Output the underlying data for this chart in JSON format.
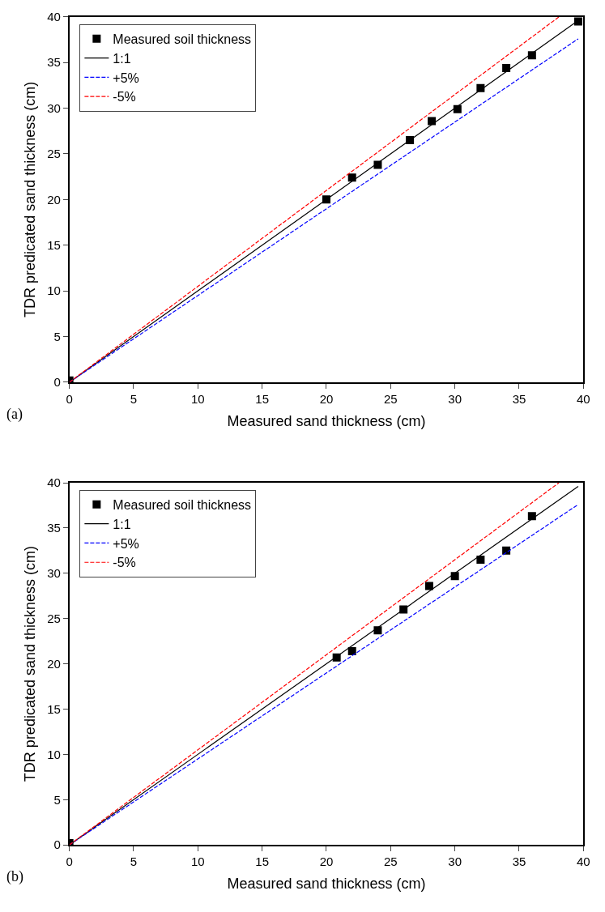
{
  "chart_data": [
    {
      "type": "scatter",
      "xlabel": "Measured sand thickness (cm)",
      "ylabel": "TDR predicated sand thickness (cm)",
      "annotations": [
        "(a)"
      ],
      "xlim": [
        0,
        40
      ],
      "ylim": [
        0,
        40
      ],
      "xticks": [
        0,
        5,
        10,
        15,
        20,
        25,
        30,
        35,
        40
      ],
      "yticks": [
        0,
        5,
        10,
        15,
        20,
        25,
        30,
        35,
        40
      ],
      "grid": false,
      "legend": "top left",
      "series": [
        {
          "name": "Measured soil thickness",
          "marker": "square",
          "color": "#000000",
          "x": [
            0,
            20,
            22,
            24,
            26.5,
            28.2,
            30.2,
            32,
            34,
            36,
            39.6
          ],
          "values": [
            0.2,
            20,
            22.4,
            23.8,
            26.5,
            28.6,
            29.9,
            32.2,
            34.4,
            35.8,
            39.5
          ]
        },
        {
          "name": "1:1",
          "type": "line",
          "line_style": "solid",
          "color": "#000000",
          "x": [
            0,
            39.6
          ],
          "values": [
            0,
            39.6
          ]
        },
        {
          "name": "+5%",
          "type": "line",
          "line_style": "dashed",
          "color": "#0000ff",
          "x": [
            0,
            39.6
          ],
          "values": [
            0,
            37.6
          ]
        },
        {
          "name": "-5%",
          "type": "line",
          "line_style": "dashed",
          "color": "#ff0000",
          "x": [
            0,
            38.1
          ],
          "values": [
            0,
            40
          ]
        }
      ]
    },
    {
      "type": "scatter",
      "xlabel": "Measured sand thickness (cm)",
      "ylabel": "TDR predicated sand thickness (cm)",
      "annotations": [
        "(b)"
      ],
      "xlim": [
        0,
        40
      ],
      "ylim": [
        0,
        40
      ],
      "xticks": [
        0,
        5,
        10,
        15,
        20,
        25,
        30,
        35,
        40
      ],
      "yticks": [
        0,
        5,
        10,
        15,
        20,
        25,
        30,
        35,
        40
      ],
      "grid": false,
      "legend": "top left",
      "series": [
        {
          "name": "Measured soil thickness",
          "marker": "square",
          "color": "#000000",
          "x": [
            0,
            20.8,
            22,
            24,
            26,
            28,
            30,
            32,
            34,
            36
          ],
          "values": [
            0.2,
            20.7,
            21.4,
            23.7,
            26,
            28.6,
            29.7,
            31.5,
            32.5,
            36.3
          ]
        },
        {
          "name": "1:1",
          "type": "line",
          "line_style": "solid",
          "color": "#000000",
          "x": [
            0,
            39.6
          ],
          "values": [
            0,
            39.6
          ]
        },
        {
          "name": "+5%",
          "type": "line",
          "line_style": "dashed",
          "color": "#0000ff",
          "x": [
            0,
            39.6
          ],
          "values": [
            0,
            37.6
          ]
        },
        {
          "name": "-5%",
          "type": "line",
          "line_style": "dashed",
          "color": "#ff0000",
          "x": [
            0,
            38.1
          ],
          "values": [
            0,
            40
          ]
        }
      ]
    }
  ]
}
